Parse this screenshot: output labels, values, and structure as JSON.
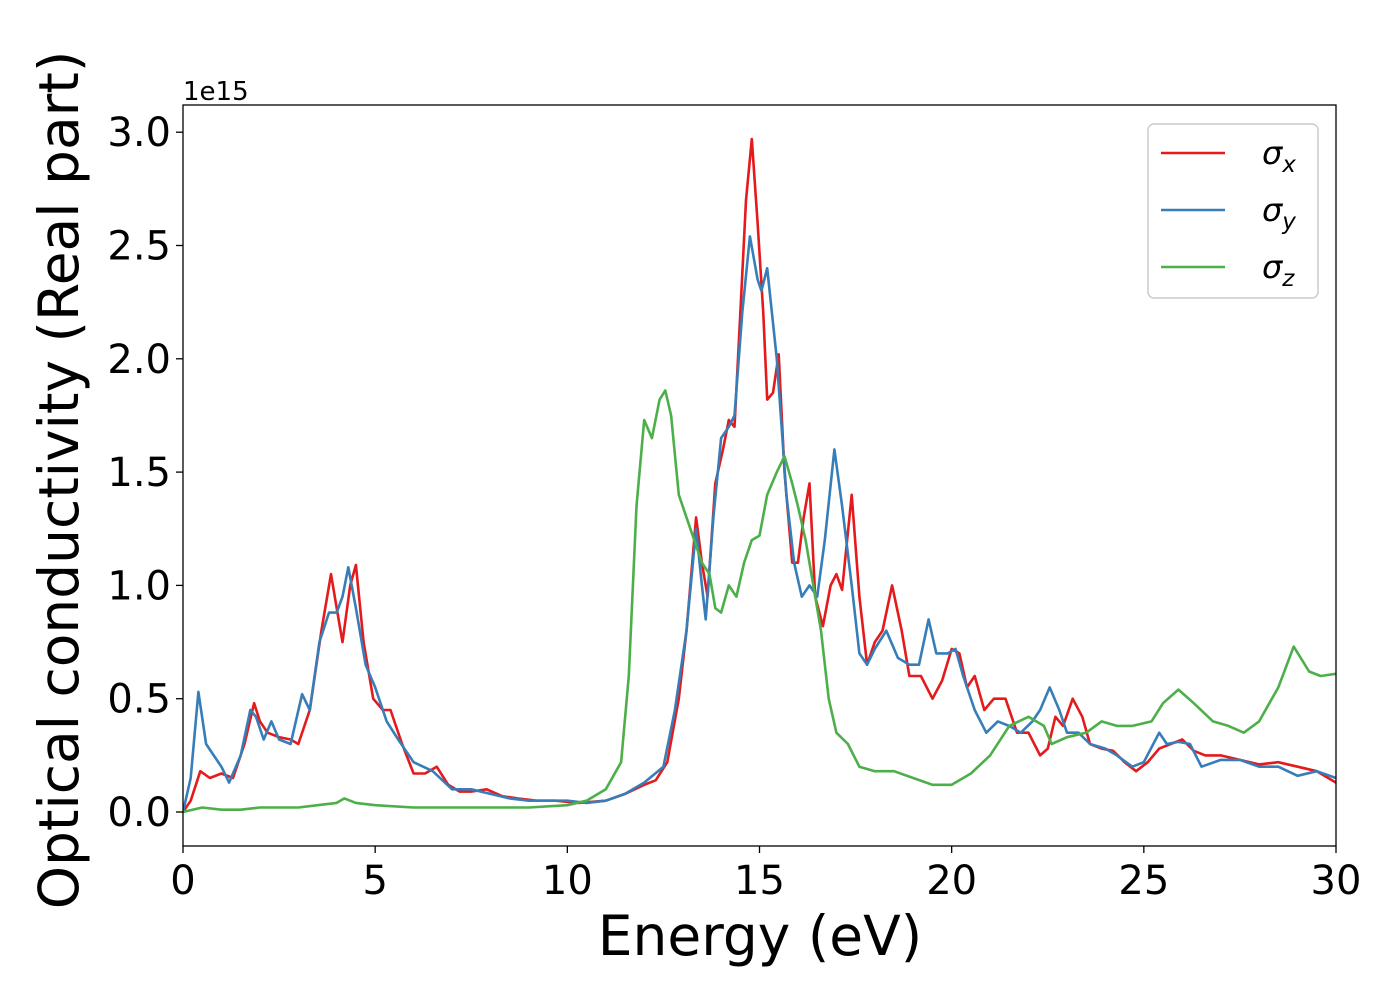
{
  "chart_data": {
    "type": "line",
    "title": "",
    "xlabel": "Energy (eV)",
    "ylabel": "Optical conductivity (Real part)",
    "y_offset_label": "1e15",
    "xlim": [
      0,
      30
    ],
    "ylim": [
      -0.15,
      3.12
    ],
    "x_ticks": [
      0,
      5,
      10,
      15,
      20,
      25,
      30
    ],
    "y_ticks": [
      0.0,
      0.5,
      1.0,
      1.5,
      2.0,
      2.5,
      3.0
    ],
    "grid": false,
    "legend": {
      "position": "top-right"
    },
    "series": [
      {
        "name": "σx",
        "symbol": "σ",
        "subscript": "x",
        "color": "#e41a1c",
        "points": [
          [
            0,
            0
          ],
          [
            0.2,
            0.05
          ],
          [
            0.45,
            0.18
          ],
          [
            0.7,
            0.15
          ],
          [
            1.0,
            0.17
          ],
          [
            1.3,
            0.15
          ],
          [
            1.6,
            0.3
          ],
          [
            1.85,
            0.48
          ],
          [
            2.0,
            0.4
          ],
          [
            2.2,
            0.35
          ],
          [
            2.5,
            0.33
          ],
          [
            2.8,
            0.32
          ],
          [
            3.0,
            0.3
          ],
          [
            3.3,
            0.45
          ],
          [
            3.6,
            0.8
          ],
          [
            3.85,
            1.05
          ],
          [
            4.0,
            0.9
          ],
          [
            4.15,
            0.75
          ],
          [
            4.35,
            1.0
          ],
          [
            4.5,
            1.09
          ],
          [
            4.7,
            0.75
          ],
          [
            4.95,
            0.5
          ],
          [
            5.2,
            0.45
          ],
          [
            5.4,
            0.45
          ],
          [
            5.7,
            0.3
          ],
          [
            6.0,
            0.17
          ],
          [
            6.3,
            0.17
          ],
          [
            6.6,
            0.2
          ],
          [
            6.9,
            0.12
          ],
          [
            7.2,
            0.09
          ],
          [
            7.5,
            0.09
          ],
          [
            7.9,
            0.1
          ],
          [
            8.3,
            0.07
          ],
          [
            8.7,
            0.06
          ],
          [
            9.2,
            0.05
          ],
          [
            9.7,
            0.05
          ],
          [
            10.3,
            0.04
          ],
          [
            11.0,
            0.05
          ],
          [
            11.5,
            0.08
          ],
          [
            12.0,
            0.12
          ],
          [
            12.3,
            0.14
          ],
          [
            12.6,
            0.22
          ],
          [
            12.9,
            0.5
          ],
          [
            13.1,
            0.8
          ],
          [
            13.35,
            1.3
          ],
          [
            13.5,
            1.1
          ],
          [
            13.65,
            0.95
          ],
          [
            13.85,
            1.45
          ],
          [
            14.05,
            1.6
          ],
          [
            14.2,
            1.73
          ],
          [
            14.35,
            1.7
          ],
          [
            14.5,
            2.2
          ],
          [
            14.65,
            2.7
          ],
          [
            14.8,
            2.97
          ],
          [
            14.95,
            2.6
          ],
          [
            15.1,
            2.2
          ],
          [
            15.2,
            1.82
          ],
          [
            15.35,
            1.85
          ],
          [
            15.5,
            2.02
          ],
          [
            15.65,
            1.5
          ],
          [
            15.85,
            1.1
          ],
          [
            16.0,
            1.1
          ],
          [
            16.15,
            1.3
          ],
          [
            16.3,
            1.45
          ],
          [
            16.45,
            0.95
          ],
          [
            16.65,
            0.82
          ],
          [
            16.85,
            1.0
          ],
          [
            17.0,
            1.05
          ],
          [
            17.15,
            0.98
          ],
          [
            17.4,
            1.4
          ],
          [
            17.6,
            0.95
          ],
          [
            17.8,
            0.65
          ],
          [
            18.0,
            0.75
          ],
          [
            18.2,
            0.8
          ],
          [
            18.45,
            1.0
          ],
          [
            18.7,
            0.8
          ],
          [
            18.9,
            0.6
          ],
          [
            19.2,
            0.6
          ],
          [
            19.5,
            0.5
          ],
          [
            19.75,
            0.58
          ],
          [
            20.0,
            0.72
          ],
          [
            20.2,
            0.7
          ],
          [
            20.4,
            0.55
          ],
          [
            20.6,
            0.6
          ],
          [
            20.85,
            0.45
          ],
          [
            21.1,
            0.5
          ],
          [
            21.4,
            0.5
          ],
          [
            21.7,
            0.35
          ],
          [
            22.0,
            0.35
          ],
          [
            22.3,
            0.25
          ],
          [
            22.5,
            0.28
          ],
          [
            22.7,
            0.42
          ],
          [
            22.9,
            0.38
          ],
          [
            23.15,
            0.5
          ],
          [
            23.4,
            0.42
          ],
          [
            23.6,
            0.3
          ],
          [
            23.9,
            0.28
          ],
          [
            24.2,
            0.27
          ],
          [
            24.5,
            0.22
          ],
          [
            24.8,
            0.18
          ],
          [
            25.1,
            0.22
          ],
          [
            25.4,
            0.28
          ],
          [
            25.7,
            0.3
          ],
          [
            26.0,
            0.32
          ],
          [
            26.3,
            0.27
          ],
          [
            26.6,
            0.25
          ],
          [
            27.0,
            0.25
          ],
          [
            27.5,
            0.23
          ],
          [
            28.0,
            0.21
          ],
          [
            28.5,
            0.22
          ],
          [
            29.0,
            0.2
          ],
          [
            29.5,
            0.18
          ],
          [
            30,
            0.13
          ]
        ]
      },
      {
        "name": "σy",
        "symbol": "σ",
        "subscript": "y",
        "color": "#377eb8",
        "points": [
          [
            0,
            0
          ],
          [
            0.2,
            0.15
          ],
          [
            0.4,
            0.53
          ],
          [
            0.6,
            0.3
          ],
          [
            0.8,
            0.25
          ],
          [
            1.0,
            0.2
          ],
          [
            1.2,
            0.13
          ],
          [
            1.5,
            0.25
          ],
          [
            1.75,
            0.45
          ],
          [
            1.9,
            0.42
          ],
          [
            2.1,
            0.32
          ],
          [
            2.3,
            0.4
          ],
          [
            2.5,
            0.32
          ],
          [
            2.8,
            0.3
          ],
          [
            3.1,
            0.52
          ],
          [
            3.3,
            0.45
          ],
          [
            3.55,
            0.75
          ],
          [
            3.8,
            0.88
          ],
          [
            4.0,
            0.88
          ],
          [
            4.15,
            0.95
          ],
          [
            4.3,
            1.08
          ],
          [
            4.5,
            0.9
          ],
          [
            4.75,
            0.65
          ],
          [
            5.0,
            0.55
          ],
          [
            5.3,
            0.4
          ],
          [
            5.6,
            0.32
          ],
          [
            6.0,
            0.22
          ],
          [
            6.5,
            0.18
          ],
          [
            7.0,
            0.1
          ],
          [
            7.5,
            0.1
          ],
          [
            8.0,
            0.08
          ],
          [
            8.5,
            0.06
          ],
          [
            9.0,
            0.05
          ],
          [
            9.5,
            0.05
          ],
          [
            10.0,
            0.05
          ],
          [
            10.5,
            0.04
          ],
          [
            11.0,
            0.05
          ],
          [
            11.5,
            0.08
          ],
          [
            12.0,
            0.13
          ],
          [
            12.5,
            0.2
          ],
          [
            12.8,
            0.45
          ],
          [
            13.1,
            0.8
          ],
          [
            13.35,
            1.25
          ],
          [
            13.5,
            1.0
          ],
          [
            13.6,
            0.85
          ],
          [
            13.8,
            1.3
          ],
          [
            14.0,
            1.65
          ],
          [
            14.2,
            1.7
          ],
          [
            14.35,
            1.75
          ],
          [
            14.55,
            2.2
          ],
          [
            14.75,
            2.54
          ],
          [
            14.95,
            2.35
          ],
          [
            15.05,
            2.3
          ],
          [
            15.2,
            2.4
          ],
          [
            15.45,
            2.0
          ],
          [
            15.7,
            1.4
          ],
          [
            15.9,
            1.1
          ],
          [
            16.1,
            0.95
          ],
          [
            16.3,
            1.0
          ],
          [
            16.5,
            0.95
          ],
          [
            16.7,
            1.2
          ],
          [
            16.95,
            1.6
          ],
          [
            17.15,
            1.35
          ],
          [
            17.4,
            1.0
          ],
          [
            17.6,
            0.7
          ],
          [
            17.8,
            0.65
          ],
          [
            18.0,
            0.72
          ],
          [
            18.3,
            0.8
          ],
          [
            18.6,
            0.68
          ],
          [
            18.9,
            0.65
          ],
          [
            19.15,
            0.65
          ],
          [
            19.4,
            0.85
          ],
          [
            19.6,
            0.7
          ],
          [
            19.9,
            0.7
          ],
          [
            20.1,
            0.72
          ],
          [
            20.3,
            0.6
          ],
          [
            20.6,
            0.45
          ],
          [
            20.9,
            0.35
          ],
          [
            21.2,
            0.4
          ],
          [
            21.5,
            0.38
          ],
          [
            21.8,
            0.35
          ],
          [
            22.1,
            0.4
          ],
          [
            22.3,
            0.45
          ],
          [
            22.55,
            0.55
          ],
          [
            22.8,
            0.45
          ],
          [
            23.0,
            0.35
          ],
          [
            23.3,
            0.35
          ],
          [
            23.6,
            0.3
          ],
          [
            24.0,
            0.28
          ],
          [
            24.3,
            0.25
          ],
          [
            24.7,
            0.2
          ],
          [
            25.0,
            0.22
          ],
          [
            25.4,
            0.35
          ],
          [
            25.6,
            0.3
          ],
          [
            25.9,
            0.31
          ],
          [
            26.2,
            0.3
          ],
          [
            26.5,
            0.2
          ],
          [
            27.0,
            0.23
          ],
          [
            27.5,
            0.23
          ],
          [
            28.0,
            0.2
          ],
          [
            28.5,
            0.2
          ],
          [
            29.0,
            0.16
          ],
          [
            29.5,
            0.18
          ],
          [
            30,
            0.15
          ]
        ]
      },
      {
        "name": "σz",
        "symbol": "σ",
        "subscript": "z",
        "color": "#4daf4a",
        "points": [
          [
            0,
            0
          ],
          [
            0.5,
            0.02
          ],
          [
            1.0,
            0.01
          ],
          [
            1.5,
            0.01
          ],
          [
            2.0,
            0.02
          ],
          [
            2.5,
            0.02
          ],
          [
            3.0,
            0.02
          ],
          [
            3.5,
            0.03
          ],
          [
            4.0,
            0.04
          ],
          [
            4.2,
            0.06
          ],
          [
            4.5,
            0.04
          ],
          [
            5.0,
            0.03
          ],
          [
            6.0,
            0.02
          ],
          [
            7.0,
            0.02
          ],
          [
            8.0,
            0.02
          ],
          [
            9.0,
            0.02
          ],
          [
            10.0,
            0.03
          ],
          [
            10.5,
            0.05
          ],
          [
            11.0,
            0.1
          ],
          [
            11.4,
            0.22
          ],
          [
            11.6,
            0.6
          ],
          [
            11.8,
            1.35
          ],
          [
            12.0,
            1.73
          ],
          [
            12.2,
            1.65
          ],
          [
            12.4,
            1.82
          ],
          [
            12.55,
            1.86
          ],
          [
            12.7,
            1.75
          ],
          [
            12.9,
            1.4
          ],
          [
            13.1,
            1.3
          ],
          [
            13.3,
            1.2
          ],
          [
            13.5,
            1.1
          ],
          [
            13.7,
            1.05
          ],
          [
            13.85,
            0.9
          ],
          [
            14.0,
            0.88
          ],
          [
            14.2,
            1.0
          ],
          [
            14.4,
            0.95
          ],
          [
            14.6,
            1.1
          ],
          [
            14.8,
            1.2
          ],
          [
            15.0,
            1.22
          ],
          [
            15.2,
            1.4
          ],
          [
            15.45,
            1.5
          ],
          [
            15.65,
            1.57
          ],
          [
            15.85,
            1.45
          ],
          [
            16.0,
            1.35
          ],
          [
            16.2,
            1.2
          ],
          [
            16.4,
            1.0
          ],
          [
            16.6,
            0.8
          ],
          [
            16.8,
            0.5
          ],
          [
            17.0,
            0.35
          ],
          [
            17.3,
            0.3
          ],
          [
            17.6,
            0.2
          ],
          [
            18.0,
            0.18
          ],
          [
            18.5,
            0.18
          ],
          [
            19.0,
            0.15
          ],
          [
            19.5,
            0.12
          ],
          [
            20.0,
            0.12
          ],
          [
            20.5,
            0.17
          ],
          [
            21.0,
            0.25
          ],
          [
            21.5,
            0.38
          ],
          [
            22.0,
            0.42
          ],
          [
            22.4,
            0.38
          ],
          [
            22.6,
            0.3
          ],
          [
            23.0,
            0.33
          ],
          [
            23.5,
            0.35
          ],
          [
            23.9,
            0.4
          ],
          [
            24.3,
            0.38
          ],
          [
            24.7,
            0.38
          ],
          [
            25.2,
            0.4
          ],
          [
            25.5,
            0.48
          ],
          [
            25.9,
            0.54
          ],
          [
            26.3,
            0.48
          ],
          [
            26.8,
            0.4
          ],
          [
            27.2,
            0.38
          ],
          [
            27.6,
            0.35
          ],
          [
            28.0,
            0.4
          ],
          [
            28.5,
            0.55
          ],
          [
            28.9,
            0.73
          ],
          [
            29.3,
            0.62
          ],
          [
            29.6,
            0.6
          ],
          [
            30,
            0.61
          ]
        ]
      }
    ]
  }
}
